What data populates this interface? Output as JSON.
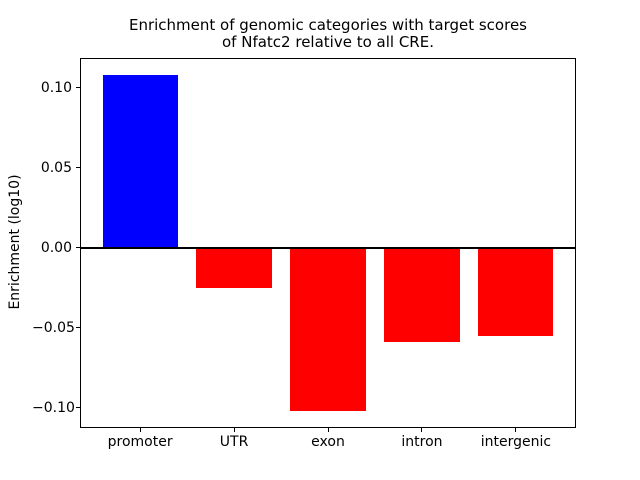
{
  "chart_data": {
    "type": "bar",
    "title": "Enrichment of genomic categories with target scores\nof Nfatc2 relative to all CRE.",
    "title_lines": [
      "Enrichment of genomic categories with target scores",
      "of Nfatc2 relative to all CRE."
    ],
    "xlabel": "",
    "ylabel": "Enrichment (log10)",
    "categories": [
      "promoter",
      "UTR",
      "exon",
      "intron",
      "intergenic"
    ],
    "values": [
      0.108,
      -0.025,
      -0.102,
      -0.059,
      -0.055
    ],
    "bar_colors": [
      "#0000ff",
      "#ff0000",
      "#ff0000",
      "#ff0000",
      "#ff0000"
    ],
    "positive_color": "#0000ff",
    "negative_color": "#ff0000",
    "ylim": [
      -0.1125,
      0.1185
    ],
    "yticks": [
      0.1,
      0.05,
      0.0,
      -0.05,
      -0.1
    ],
    "ytick_labels": [
      "0.10",
      "0.05",
      "0.00",
      "−0.05",
      "−0.10"
    ],
    "zero_line": true,
    "grid": false,
    "legend_position": "none",
    "axis_color": "#000000",
    "background_color": "#ffffff"
  }
}
